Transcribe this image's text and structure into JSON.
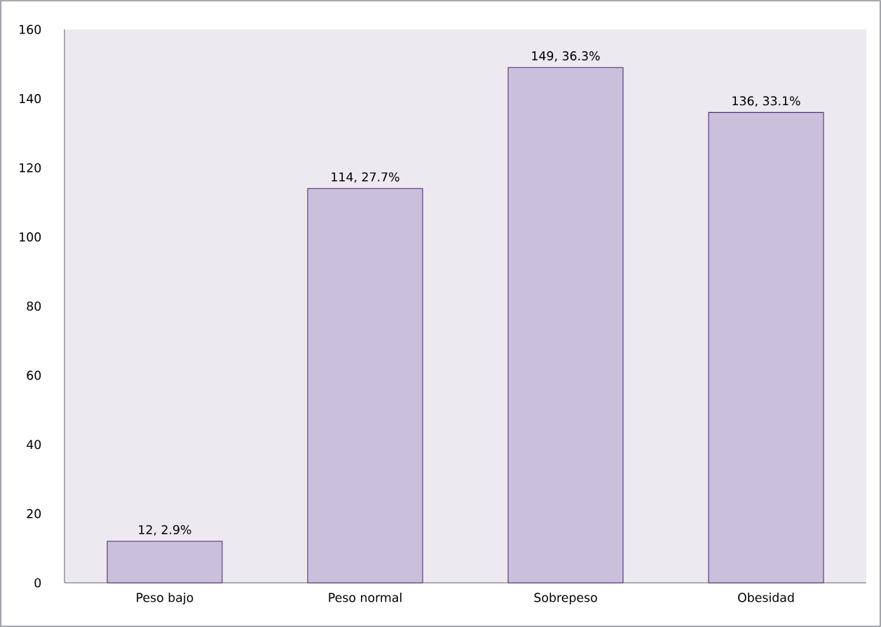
{
  "chart_data": {
    "type": "bar",
    "categories": [
      "Peso bajo",
      "Peso normal",
      "Sobrepeso",
      "Obesidad"
    ],
    "values": [
      12,
      114,
      149,
      136
    ],
    "value_labels": [
      "12, 2.9%",
      "114, 27.7%",
      "149, 36.3%",
      "136, 33.1%"
    ],
    "color": "#cbc0dc",
    "ylim": [
      0,
      160
    ],
    "yticks": [
      0,
      20,
      40,
      60,
      80,
      100,
      120,
      140,
      160
    ]
  }
}
